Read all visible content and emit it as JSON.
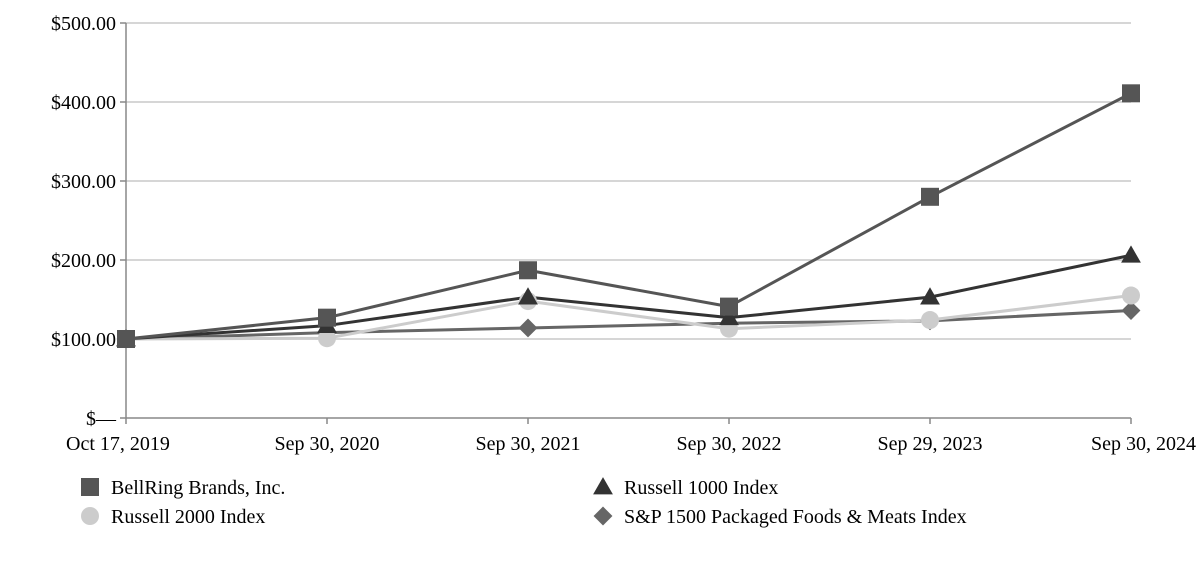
{
  "chart_data": {
    "type": "line",
    "categories": [
      "Oct 17, 2019",
      "Sep 30, 2020",
      "Sep 30, 2021",
      "Sep 30, 2022",
      "Sep 29, 2023",
      "Sep 30, 2024"
    ],
    "y_ticks": [
      {
        "value": 0,
        "label": "$—"
      },
      {
        "value": 100,
        "label": "$100.00"
      },
      {
        "value": 200,
        "label": "$200.00"
      },
      {
        "value": 300,
        "label": "$300.00"
      },
      {
        "value": 400,
        "label": "$400.00"
      },
      {
        "value": 500,
        "label": "$500.00"
      }
    ],
    "ylim": [
      0,
      500
    ],
    "grid": true,
    "legend_position": "bottom",
    "series": [
      {
        "name": "BellRing Brands, Inc.",
        "values": [
          100,
          127,
          187,
          141,
          280,
          411
        ],
        "color": "#555555",
        "marker": "square"
      },
      {
        "name": "Russell 1000 Index",
        "values": [
          100,
          117,
          153,
          127,
          153,
          206
        ],
        "color": "#333333",
        "marker": "triangle"
      },
      {
        "name": "Russell 2000 Index",
        "values": [
          100,
          101,
          148,
          113,
          124,
          155
        ],
        "color": "#cccccc",
        "marker": "circle"
      },
      {
        "name": "S&P 1500 Packaged Foods & Meats Index",
        "values": [
          100,
          108,
          114,
          120,
          123,
          136
        ],
        "color": "#666666",
        "marker": "diamond"
      }
    ]
  }
}
